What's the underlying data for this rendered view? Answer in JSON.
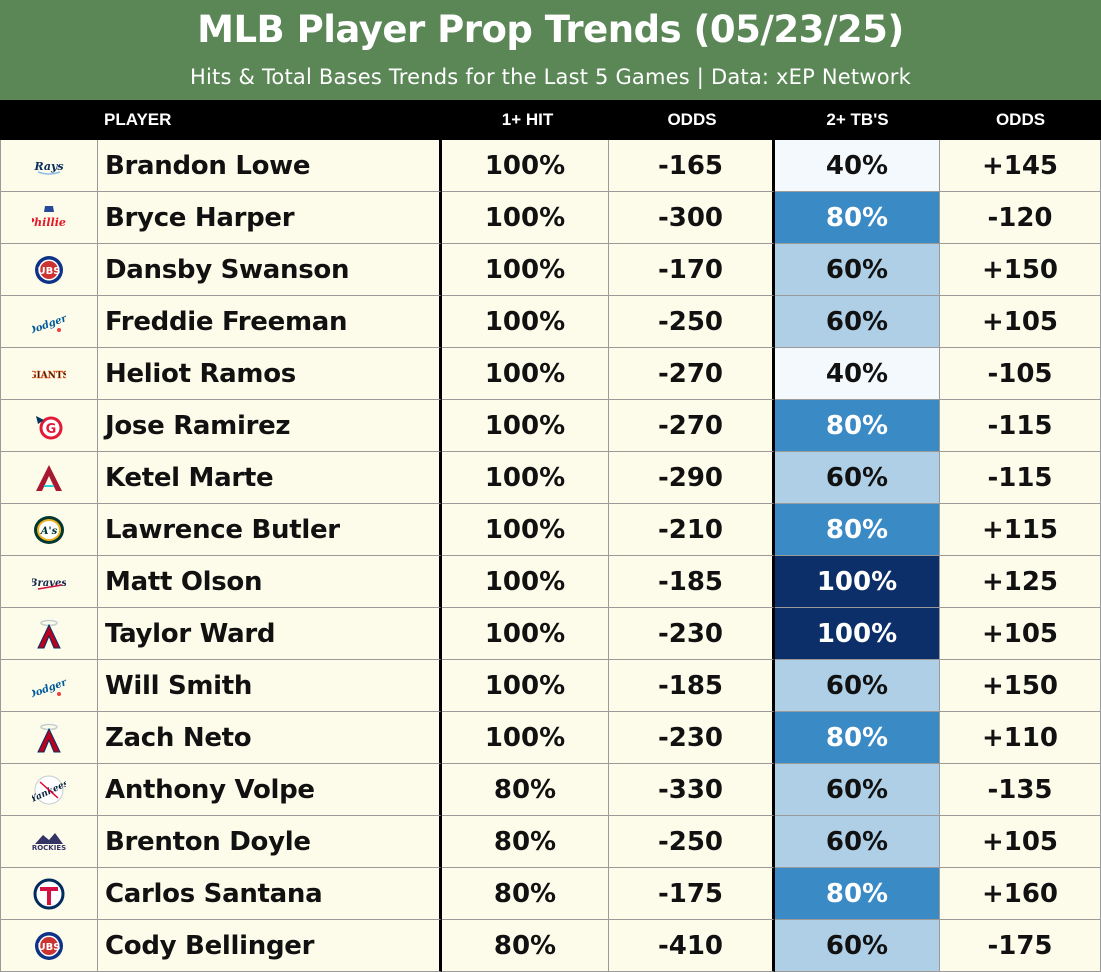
{
  "header": {
    "title": "MLB Player Prop Trends (05/23/25)",
    "subtitle": "Hits & Total Bases Trends for the Last 5 Games | Data: xEP Network",
    "bg_color": "#5b8757"
  },
  "columns": {
    "player": "PLAYER",
    "hit": "1+ HIT",
    "odds1": "ODDS",
    "tb": "2+ TB'S",
    "odds2": "ODDS"
  },
  "tb_colors": {
    "40%": "#f4f9fe",
    "60%": "#aecfe6",
    "80%": "#3a8ac6",
    "100%": "#0d2f69"
  },
  "rows": [
    {
      "team_icon": "rays-logo-icon",
      "player": "Brandon Lowe",
      "hit": "100%",
      "hit_odds": "-165",
      "tb": "40%",
      "tb_odds": "+145"
    },
    {
      "team_icon": "phillies-logo-icon",
      "player": "Bryce Harper",
      "hit": "100%",
      "hit_odds": "-300",
      "tb": "80%",
      "tb_odds": "-120"
    },
    {
      "team_icon": "cubs-logo-icon",
      "player": "Dansby Swanson",
      "hit": "100%",
      "hit_odds": "-170",
      "tb": "60%",
      "tb_odds": "+150"
    },
    {
      "team_icon": "dodgers-logo-icon",
      "player": "Freddie Freeman",
      "hit": "100%",
      "hit_odds": "-250",
      "tb": "60%",
      "tb_odds": "+105"
    },
    {
      "team_icon": "giants-logo-icon",
      "player": "Heliot Ramos",
      "hit": "100%",
      "hit_odds": "-270",
      "tb": "40%",
      "tb_odds": "-105"
    },
    {
      "team_icon": "guardians-logo-icon",
      "player": "Jose Ramirez",
      "hit": "100%",
      "hit_odds": "-270",
      "tb": "80%",
      "tb_odds": "-115"
    },
    {
      "team_icon": "diamondbacks-logo-icon",
      "player": "Ketel Marte",
      "hit": "100%",
      "hit_odds": "-290",
      "tb": "60%",
      "tb_odds": "-115"
    },
    {
      "team_icon": "athletics-logo-icon",
      "player": "Lawrence Butler",
      "hit": "100%",
      "hit_odds": "-210",
      "tb": "80%",
      "tb_odds": "+115"
    },
    {
      "team_icon": "braves-logo-icon",
      "player": "Matt Olson",
      "hit": "100%",
      "hit_odds": "-185",
      "tb": "100%",
      "tb_odds": "+125"
    },
    {
      "team_icon": "angels-logo-icon",
      "player": "Taylor Ward",
      "hit": "100%",
      "hit_odds": "-230",
      "tb": "100%",
      "tb_odds": "+105"
    },
    {
      "team_icon": "dodgers-logo-icon",
      "player": "Will Smith",
      "hit": "100%",
      "hit_odds": "-185",
      "tb": "60%",
      "tb_odds": "+150"
    },
    {
      "team_icon": "angels-logo-icon",
      "player": "Zach Neto",
      "hit": "100%",
      "hit_odds": "-230",
      "tb": "80%",
      "tb_odds": "+110"
    },
    {
      "team_icon": "yankees-logo-icon",
      "player": "Anthony Volpe",
      "hit": "80%",
      "hit_odds": "-330",
      "tb": "60%",
      "tb_odds": "-135"
    },
    {
      "team_icon": "rockies-logo-icon",
      "player": "Brenton Doyle",
      "hit": "80%",
      "hit_odds": "-250",
      "tb": "60%",
      "tb_odds": "+105"
    },
    {
      "team_icon": "twins-logo-icon",
      "player": "Carlos Santana",
      "hit": "80%",
      "hit_odds": "-175",
      "tb": "80%",
      "tb_odds": "+160"
    },
    {
      "team_icon": "cubs-logo-icon",
      "player": "Cody Bellinger",
      "hit": "80%",
      "hit_odds": "-410",
      "tb": "60%",
      "tb_odds": "-175"
    }
  ]
}
